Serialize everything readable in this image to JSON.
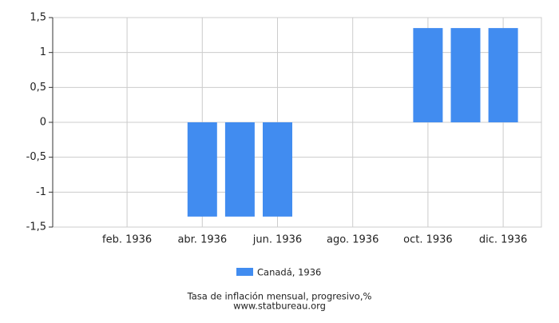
{
  "chart_data": {
    "type": "bar",
    "title": "Tasa de inflación mensual, progresivo,%",
    "subtitle": "www.statbureau.org",
    "categories": [
      null,
      "feb. 1936",
      null,
      "abr. 1936",
      null,
      "jun. 1936",
      null,
      "ago. 1936",
      null,
      "oct. 1936",
      null,
      "dic. 1936"
    ],
    "series": [
      {
        "name": "Canadá, 1936",
        "color": "#418cf0",
        "values": [
          0,
          0,
          0,
          -1.35,
          -1.35,
          -1.35,
          0,
          0,
          0,
          1.35,
          1.35,
          1.35
        ]
      }
    ],
    "ylim": [
      -1.5,
      1.5
    ],
    "yticks": [
      {
        "value": -1.5,
        "label": "-1,5"
      },
      -1,
      {
        "value": -0.5,
        "label": "-0,5"
      },
      0,
      {
        "value": 0.5,
        "label": "0,5"
      },
      1,
      {
        "value": 1.5,
        "label": "1,5"
      }
    ],
    "grid": true
  }
}
